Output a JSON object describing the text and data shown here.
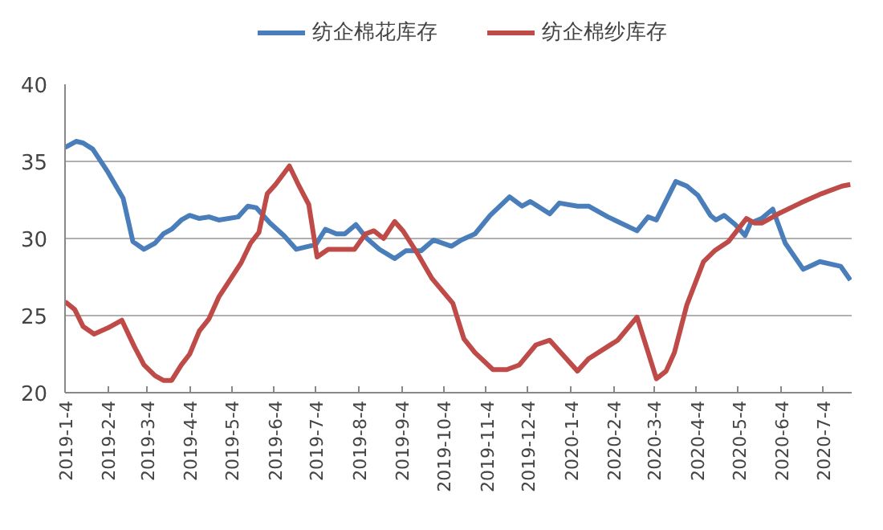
{
  "chart_data": {
    "type": "line",
    "xlim": [
      "2019-01-04",
      "2020-07-25"
    ],
    "xticks": [
      {
        "value": "2019-01-04",
        "label": "2019-1-4"
      },
      {
        "value": "2019-02-04",
        "label": "2019-2-4"
      },
      {
        "value": "2019-03-04",
        "label": "2019-3-4"
      },
      {
        "value": "2019-04-04",
        "label": "2019-4-4"
      },
      {
        "value": "2019-05-04",
        "label": "2019-5-4"
      },
      {
        "value": "2019-06-04",
        "label": "2019-6-4"
      },
      {
        "value": "2019-07-04",
        "label": "2019-7-4"
      },
      {
        "value": "2019-08-04",
        "label": "2019-8-4"
      },
      {
        "value": "2019-09-04",
        "label": "2019-9-4"
      },
      {
        "value": "2019-10-04",
        "label": "2019-10-4"
      },
      {
        "value": "2019-11-04",
        "label": "2019-11-4"
      },
      {
        "value": "2019-12-04",
        "label": "2019-12-4"
      },
      {
        "value": "2020-01-04",
        "label": "2020-1-4"
      },
      {
        "value": "2020-02-04",
        "label": "2020-2-4"
      },
      {
        "value": "2020-03-04",
        "label": "2020-3-4"
      },
      {
        "value": "2020-04-04",
        "label": "2020-4-4"
      },
      {
        "value": "2020-05-04",
        "label": "2020-5-4"
      },
      {
        "value": "2020-06-04",
        "label": "2020-6-4"
      },
      {
        "value": "2020-07-04",
        "label": "2020-7-4"
      }
    ],
    "ylim": [
      20,
      40
    ],
    "yticks": [
      20,
      25,
      30,
      35,
      40
    ],
    "grid": "y",
    "legend": "top",
    "marker": "none",
    "line_style": "solid",
    "series": [
      {
        "name": "纺企棉花库存",
        "color": "#4a7ebb",
        "x": [
          "2019-01-04",
          "2019-01-12",
          "2019-01-17",
          "2019-01-24",
          "2019-02-04",
          "2019-02-15",
          "2019-02-22",
          "2019-03-02",
          "2019-03-10",
          "2019-03-16",
          "2019-03-22",
          "2019-03-29",
          "2019-04-04",
          "2019-04-11",
          "2019-04-18",
          "2019-04-25",
          "2019-05-09",
          "2019-05-16",
          "2019-05-22",
          "2019-06-01",
          "2019-06-11",
          "2019-06-20",
          "2019-07-04",
          "2019-07-11",
          "2019-07-19",
          "2019-07-25",
          "2019-08-02",
          "2019-08-10",
          "2019-08-19",
          "2019-08-30",
          "2019-09-07",
          "2019-09-18",
          "2019-09-27",
          "2019-10-10",
          "2019-10-17",
          "2019-10-27",
          "2019-11-07",
          "2019-11-21",
          "2019-11-30",
          "2019-12-06",
          "2019-12-20",
          "2019-12-27",
          "2020-01-09",
          "2020-01-17",
          "2020-01-31",
          "2020-02-21",
          "2020-02-29",
          "2020-03-06",
          "2020-03-20",
          "2020-03-28",
          "2020-04-05",
          "2020-04-14",
          "2020-04-18",
          "2020-04-24",
          "2020-05-02",
          "2020-05-09",
          "2020-05-13",
          "2020-05-21",
          "2020-05-29",
          "2020-06-07",
          "2020-06-20",
          "2020-07-02",
          "2020-07-17",
          "2020-07-24"
        ],
        "values": [
          35.9,
          36.3,
          36.2,
          35.8,
          34.3,
          32.6,
          29.8,
          29.3,
          29.7,
          30.3,
          30.6,
          31.2,
          31.5,
          31.3,
          31.4,
          31.2,
          31.4,
          32.1,
          32.0,
          31.0,
          30.2,
          29.3,
          29.6,
          30.6,
          30.3,
          30.3,
          30.9,
          30.0,
          29.3,
          28.7,
          29.2,
          29.2,
          29.9,
          29.5,
          29.9,
          30.3,
          31.5,
          32.7,
          32.1,
          32.4,
          31.6,
          32.3,
          32.1,
          32.1,
          31.4,
          30.5,
          31.4,
          31.2,
          33.7,
          33.4,
          32.8,
          31.5,
          31.2,
          31.5,
          30.9,
          30.2,
          31.0,
          31.3,
          31.9,
          29.7,
          28.0,
          28.5,
          28.2,
          27.3
        ]
      },
      {
        "name": "纺企棉纱库存",
        "color": "#be4b48",
        "x": [
          "2019-01-04",
          "2019-01-11",
          "2019-01-17",
          "2019-01-25",
          "2019-02-04",
          "2019-02-14",
          "2019-02-23",
          "2019-03-02",
          "2019-03-10",
          "2019-03-16",
          "2019-03-22",
          "2019-03-29",
          "2019-04-04",
          "2019-04-11",
          "2019-04-18",
          "2019-04-25",
          "2019-05-03",
          "2019-05-11",
          "2019-05-18",
          "2019-05-24",
          "2019-05-30",
          "2019-06-05",
          "2019-06-15",
          "2019-06-22",
          "2019-06-29",
          "2019-07-05",
          "2019-07-13",
          "2019-08-01",
          "2019-08-09",
          "2019-08-15",
          "2019-08-22",
          "2019-08-30",
          "2019-09-05",
          "2019-09-15",
          "2019-09-26",
          "2019-10-11",
          "2019-10-19",
          "2019-10-27",
          "2019-11-09",
          "2019-11-19",
          "2019-11-28",
          "2019-12-10",
          "2019-12-20",
          "2019-12-29",
          "2020-01-09",
          "2020-01-17",
          "2020-01-31",
          "2020-02-07",
          "2020-02-21",
          "2020-03-06",
          "2020-03-13",
          "2020-03-19",
          "2020-03-28",
          "2020-04-09",
          "2020-04-17",
          "2020-04-27",
          "2020-05-10",
          "2020-05-16",
          "2020-05-21",
          "2020-06-02",
          "2020-06-18",
          "2020-07-03",
          "2020-07-18",
          "2020-07-24"
        ],
        "values": [
          25.9,
          25.4,
          24.3,
          23.8,
          24.2,
          24.7,
          23.0,
          21.8,
          21.1,
          20.8,
          20.8,
          21.8,
          22.5,
          24.0,
          24.8,
          26.2,
          27.3,
          28.4,
          29.7,
          30.4,
          32.9,
          33.5,
          34.7,
          33.4,
          32.2,
          28.8,
          29.3,
          29.3,
          30.3,
          30.5,
          30.0,
          31.1,
          30.5,
          29.1,
          27.4,
          25.8,
          23.5,
          22.6,
          21.5,
          21.5,
          21.8,
          23.1,
          23.4,
          22.5,
          21.4,
          22.2,
          23.0,
          23.4,
          24.9,
          20.9,
          21.4,
          22.6,
          25.7,
          28.5,
          29.2,
          29.8,
          31.3,
          31.0,
          31.0,
          31.6,
          32.3,
          32.9,
          33.4,
          33.5
        ]
      }
    ]
  }
}
